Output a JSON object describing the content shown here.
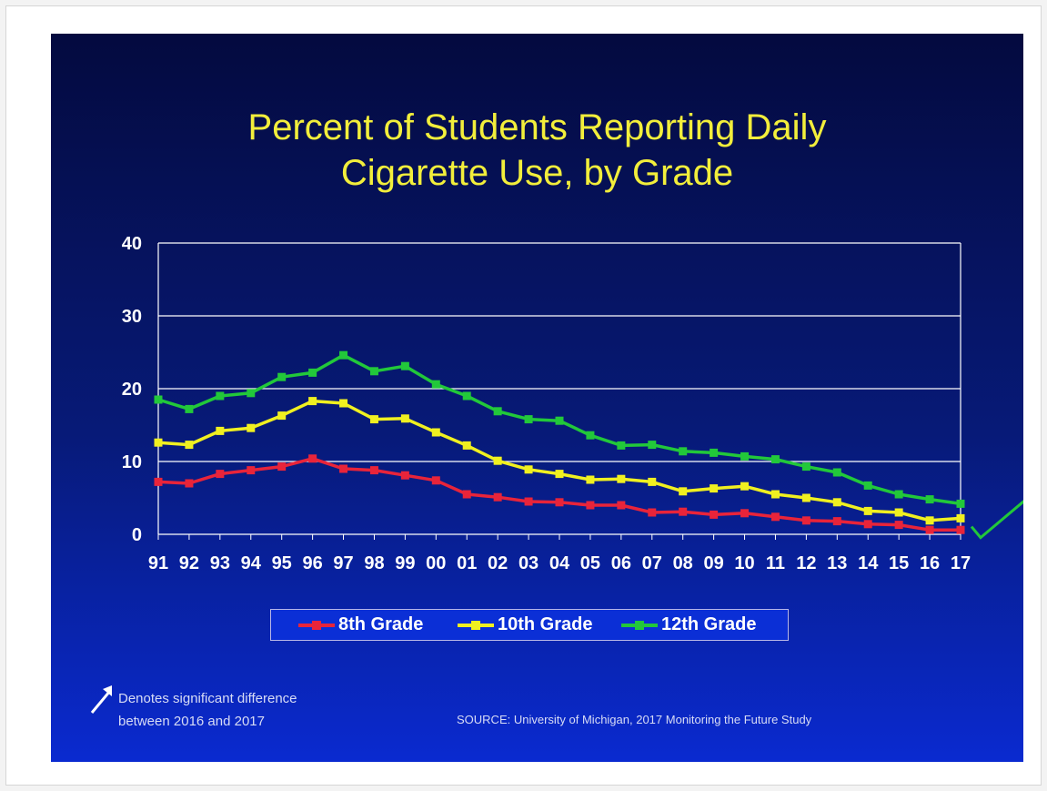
{
  "colors": {
    "background_top": "#040a3f",
    "background_bottom": "#0a2ad0",
    "title": "#f2ee3b",
    "grade8": "#e8243a",
    "grade10": "#f0f020",
    "grade12": "#22c83a",
    "gridline": "#ffffff",
    "text": "#ffffff"
  },
  "chart_data": {
    "type": "line",
    "title": "Percent of Students Reporting Daily Cigarette Use, by Grade",
    "title_lines": [
      "Percent of Students Reporting Daily",
      "Cigarette Use, by Grade"
    ],
    "xlabel": "",
    "ylabel": "",
    "categories": [
      "91",
      "92",
      "93",
      "94",
      "95",
      "96",
      "97",
      "98",
      "99",
      "00",
      "01",
      "02",
      "03",
      "04",
      "05",
      "06",
      "07",
      "08",
      "09",
      "10",
      "11",
      "12",
      "13",
      "14",
      "15",
      "16",
      "17"
    ],
    "ylim": [
      0,
      40
    ],
    "yticks": [
      0,
      10,
      20,
      30,
      40
    ],
    "grid": true,
    "legend_position": "bottom",
    "series": [
      {
        "name": "8th Grade",
        "color": "#e8243a",
        "values": [
          7.2,
          7.0,
          8.3,
          8.8,
          9.3,
          10.4,
          9.0,
          8.8,
          8.1,
          7.4,
          5.5,
          5.1,
          4.5,
          4.4,
          4.0,
          4.0,
          3.0,
          3.1,
          2.7,
          2.9,
          2.4,
          1.9,
          1.8,
          1.4,
          1.3,
          0.6,
          0.6
        ]
      },
      {
        "name": "10th Grade",
        "color": "#f0f020",
        "values": [
          12.6,
          12.3,
          14.2,
          14.6,
          16.3,
          18.3,
          18.0,
          15.8,
          15.9,
          14.0,
          12.2,
          10.1,
          8.9,
          8.3,
          7.5,
          7.6,
          7.2,
          5.9,
          6.3,
          6.6,
          5.5,
          5.0,
          4.4,
          3.2,
          3.0,
          1.9,
          2.2
        ]
      },
      {
        "name": "12th Grade",
        "color": "#22c83a",
        "values": [
          18.5,
          17.2,
          19.0,
          19.4,
          21.6,
          22.2,
          24.6,
          22.4,
          23.1,
          20.6,
          19.0,
          16.9,
          15.8,
          15.6,
          13.6,
          12.2,
          12.3,
          11.4,
          11.2,
          10.7,
          10.3,
          9.3,
          8.5,
          6.7,
          5.5,
          4.8,
          4.2
        ]
      }
    ],
    "annotations": [
      {
        "series": "12th Grade",
        "text": "",
        "marker": "significance-arrow",
        "category": "17"
      }
    ]
  },
  "legend": {
    "items": [
      "8th Grade",
      "10th Grade",
      "12th Grade"
    ]
  },
  "footnote": {
    "line1": "Denotes significant difference",
    "line2": "between 2016 and 2017"
  },
  "source": "SOURCE: University of Michigan, 2017 Monitoring the Future Study",
  "icons": {
    "footnote_marker": "arrow-up-right-icon",
    "significance_marker": "check-arrow-icon"
  }
}
